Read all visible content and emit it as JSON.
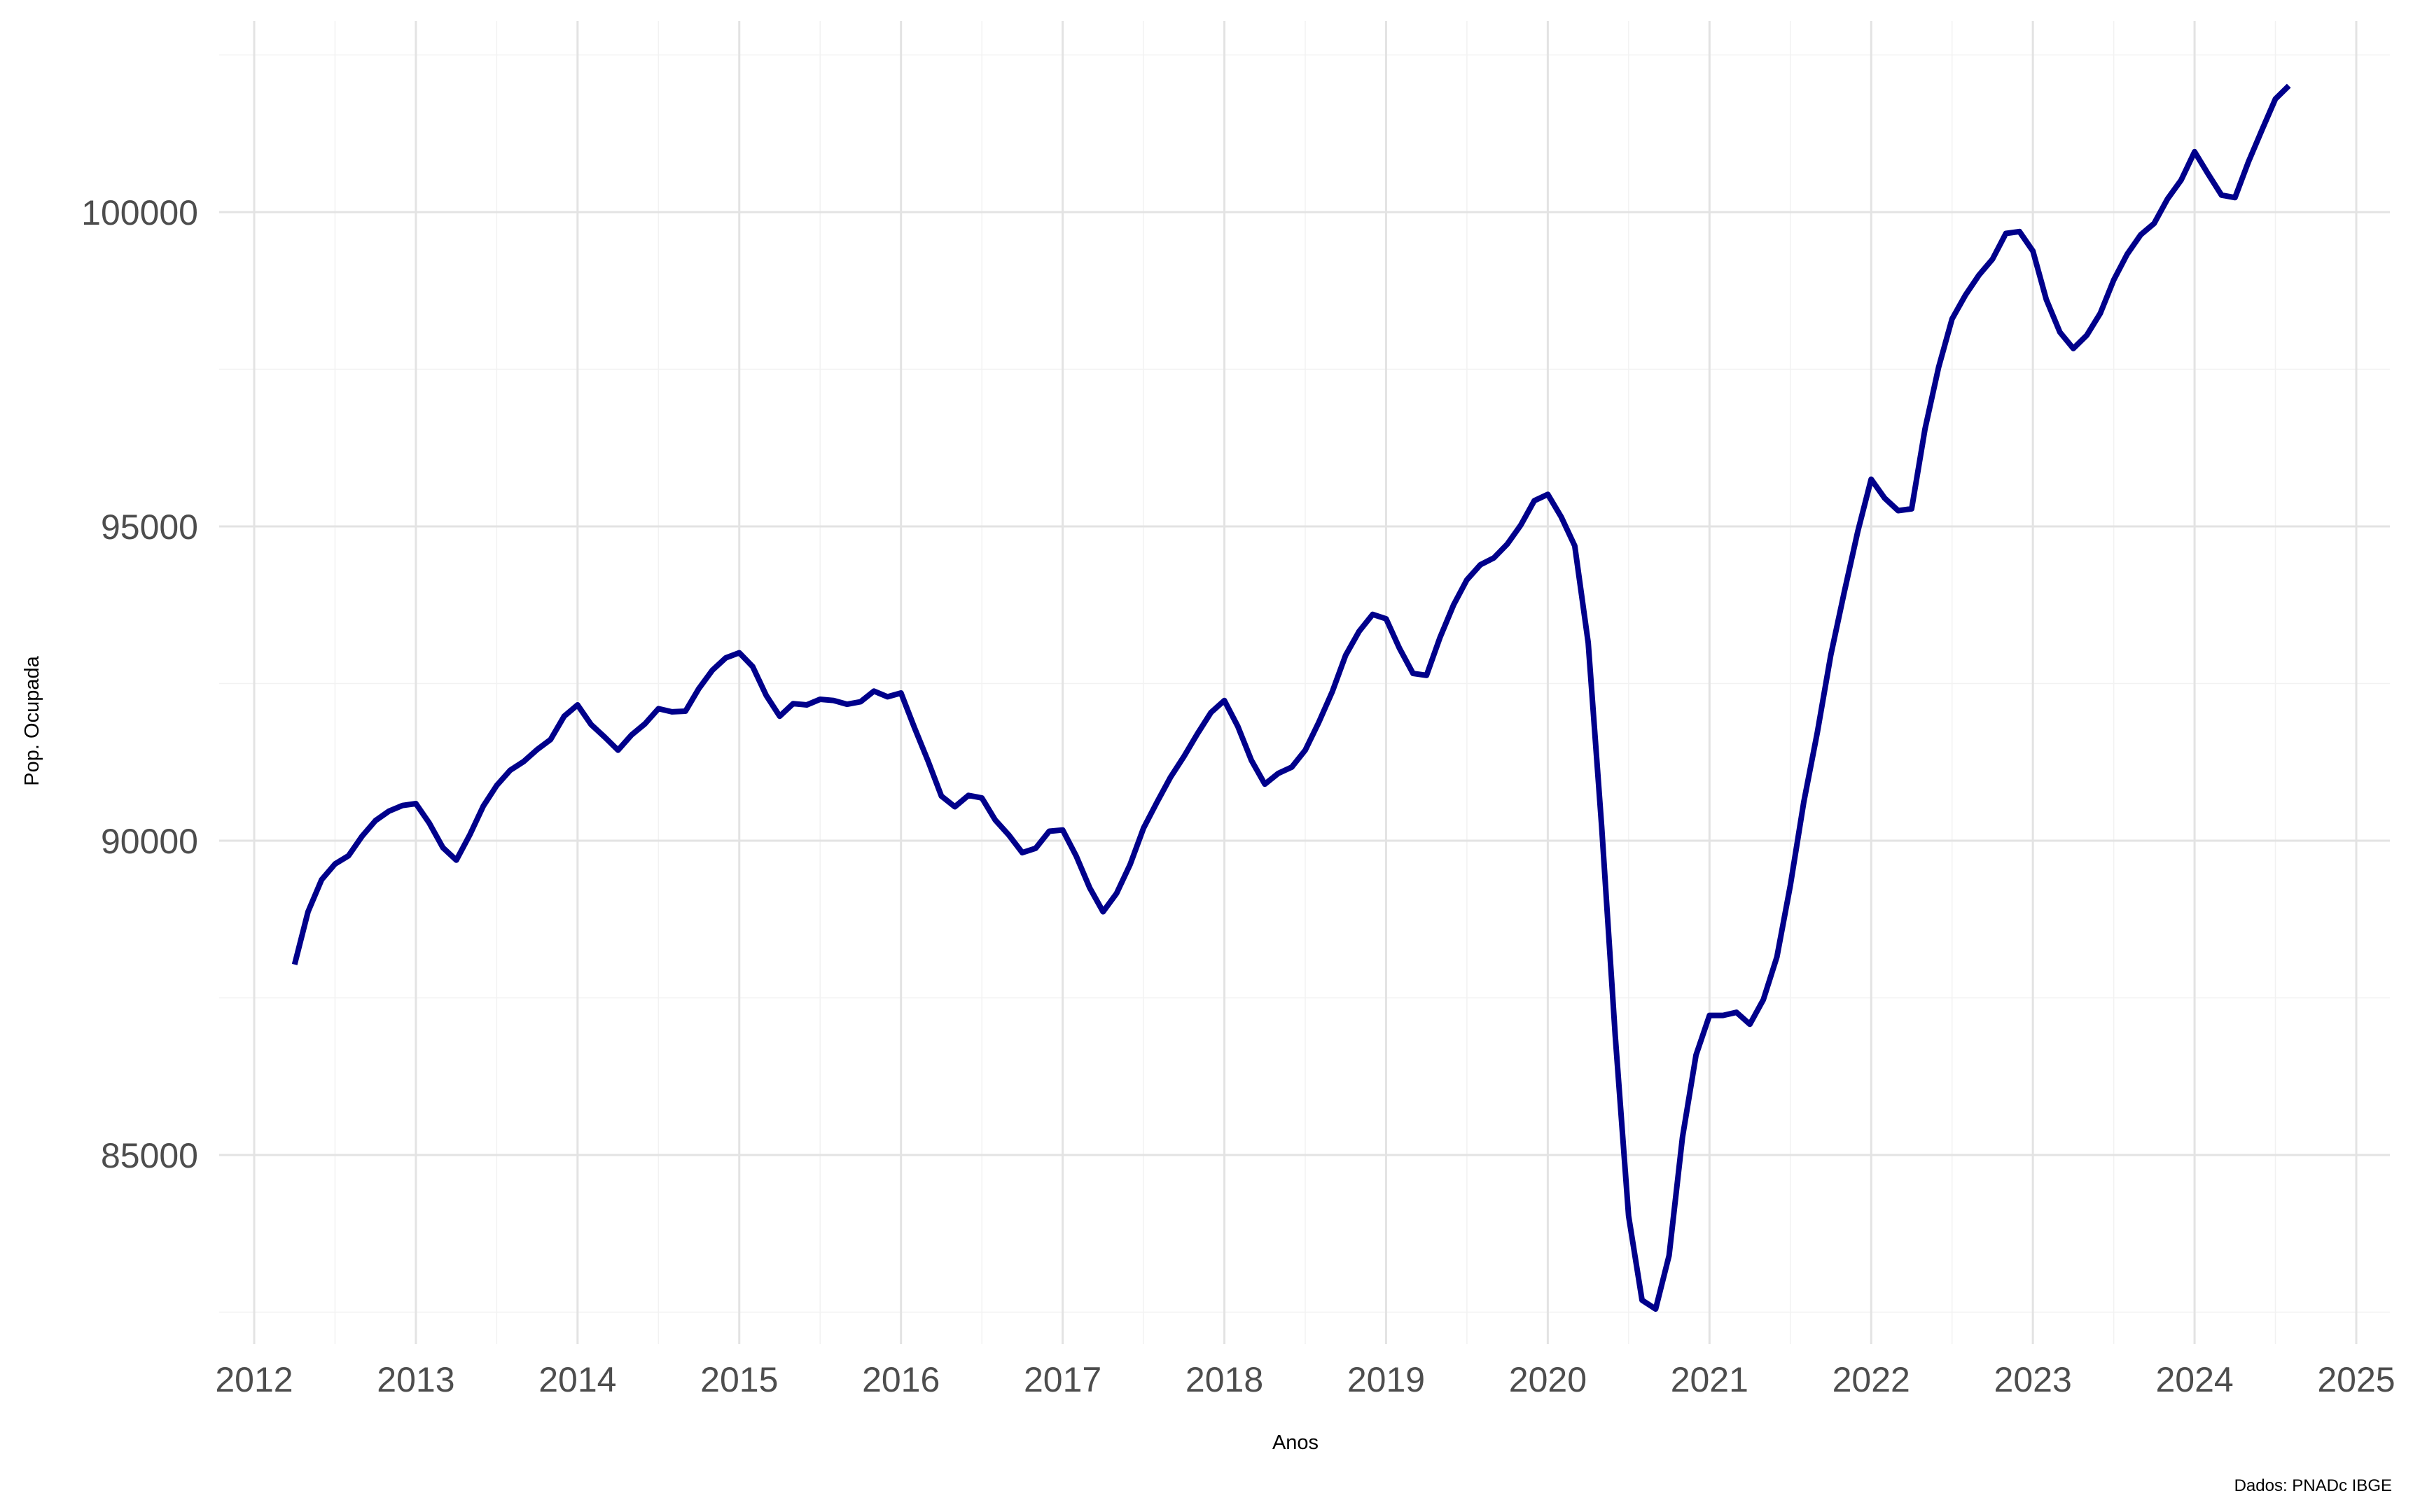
{
  "chart_data": {
    "type": "line",
    "title": "",
    "xlabel": "Anos",
    "ylabel": "Pop. Ocupada",
    "caption": "Dados: PNADc IBGE",
    "xlim": [
      2012,
      2025.05
    ],
    "ylim": [
      82200,
      103000
    ],
    "x_ticks": [
      2012,
      2013,
      2014,
      2015,
      2016,
      2017,
      2018,
      2019,
      2020,
      2021,
      2022,
      2023,
      2024,
      2025
    ],
    "x_tick_labels": [
      "2012",
      "2013",
      "2014",
      "2015",
      "2016",
      "2017",
      "2018",
      "2019",
      "2020",
      "2021",
      "2022",
      "2023",
      "2024",
      "2025"
    ],
    "y_ticks": [
      85000,
      90000,
      95000,
      100000
    ],
    "y_tick_labels": [
      "85000",
      "90000",
      "95000",
      "100000"
    ],
    "grid": true,
    "legend": "none",
    "colors": {
      "line": "#00008b",
      "grid": "#e3e3e3",
      "text": "#4d4d4d"
    },
    "series": [
      {
        "x": [
          2012.25,
          2012.333,
          2012.417,
          2012.5,
          2012.583,
          2012.667,
          2012.75,
          2012.833,
          2012.917,
          2013.0,
          2013.083,
          2013.167,
          2013.25,
          2013.333,
          2013.417,
          2013.5,
          2013.583,
          2013.667,
          2013.75,
          2013.833,
          2013.917,
          2014.0,
          2014.083,
          2014.167,
          2014.25,
          2014.333,
          2014.417,
          2014.5,
          2014.583,
          2014.667,
          2014.75,
          2014.833,
          2014.917,
          2015.0,
          2015.083,
          2015.167,
          2015.25,
          2015.333,
          2015.417,
          2015.5,
          2015.583,
          2015.667,
          2015.75,
          2015.833,
          2015.917,
          2016.0,
          2016.083,
          2016.167,
          2016.25,
          2016.333,
          2016.417,
          2016.5,
          2016.583,
          2016.667,
          2016.75,
          2016.833,
          2016.917,
          2017.0,
          2017.083,
          2017.167,
          2017.25,
          2017.333,
          2017.417,
          2017.5,
          2017.583,
          2017.667,
          2017.75,
          2017.833,
          2017.917,
          2018.0,
          2018.083,
          2018.167,
          2018.25,
          2018.333,
          2018.417,
          2018.5,
          2018.583,
          2018.667,
          2018.75,
          2018.833,
          2018.917,
          2019.0,
          2019.083,
          2019.167,
          2019.25,
          2019.333,
          2019.417,
          2019.5,
          2019.583,
          2019.667,
          2019.75,
          2019.833,
          2019.917,
          2020.0,
          2020.083,
          2020.167,
          2020.25,
          2020.333,
          2020.417,
          2020.5,
          2020.583,
          2020.667,
          2020.75,
          2020.833,
          2020.917,
          2021.0,
          2021.083,
          2021.167,
          2021.25,
          2021.333,
          2021.417,
          2021.5,
          2021.583,
          2021.667,
          2021.75,
          2021.833,
          2021.917,
          2022.0,
          2022.083,
          2022.167,
          2022.25,
          2022.333,
          2022.417,
          2022.5,
          2022.583,
          2022.667,
          2022.75,
          2022.833,
          2022.917,
          2023.0,
          2023.083,
          2023.167,
          2023.25,
          2023.333,
          2023.417,
          2023.5,
          2023.583,
          2023.667,
          2023.75,
          2023.833,
          2023.917,
          2024.0,
          2024.083,
          2024.167,
          2024.25,
          2024.333,
          2024.417,
          2024.5,
          2024.583
        ],
        "values": [
          88030,
          88870,
          89380,
          89630,
          89760,
          90070,
          90320,
          90470,
          90560,
          90590,
          90280,
          89890,
          89690,
          90090,
          90550,
          90880,
          91120,
          91260,
          91450,
          91610,
          91980,
          92160,
          91850,
          91650,
          91440,
          91680,
          91860,
          92100,
          92050,
          92060,
          92420,
          92710,
          92910,
          92990,
          92770,
          92310,
          91980,
          92180,
          92160,
          92250,
          92230,
          92170,
          92210,
          92380,
          92290,
          92350,
          91800,
          91270,
          90710,
          90540,
          90720,
          90680,
          90330,
          90090,
          89810,
          89880,
          90150,
          90170,
          89760,
          89250,
          88870,
          89160,
          89620,
          90200,
          90610,
          91010,
          91340,
          91700,
          92040,
          92230,
          91820,
          91280,
          90900,
          91070,
          91170,
          91440,
          91880,
          92370,
          92950,
          93330,
          93600,
          93530,
          93060,
          92660,
          92630,
          93230,
          93750,
          94150,
          94390,
          94500,
          94720,
          95020,
          95410,
          95510,
          95150,
          94690,
          93150,
          90230,
          86900,
          84030,
          82690,
          82550,
          83400,
          85280,
          86590,
          87220,
          87220,
          87270,
          87080,
          87470,
          88150,
          89290,
          90610,
          91720,
          92950,
          93950,
          94920,
          95750,
          95450,
          95250,
          95280,
          96550,
          97530,
          98300,
          98680,
          99000,
          99250,
          99660,
          99690,
          99380,
          98610,
          98090,
          97830,
          98040,
          98390,
          98920,
          99330,
          99640,
          99820,
          100210,
          100510,
          100960,
          100610,
          100270,
          100230,
          100800,
          101310,
          101800,
          102010
        ]
      }
    ]
  }
}
